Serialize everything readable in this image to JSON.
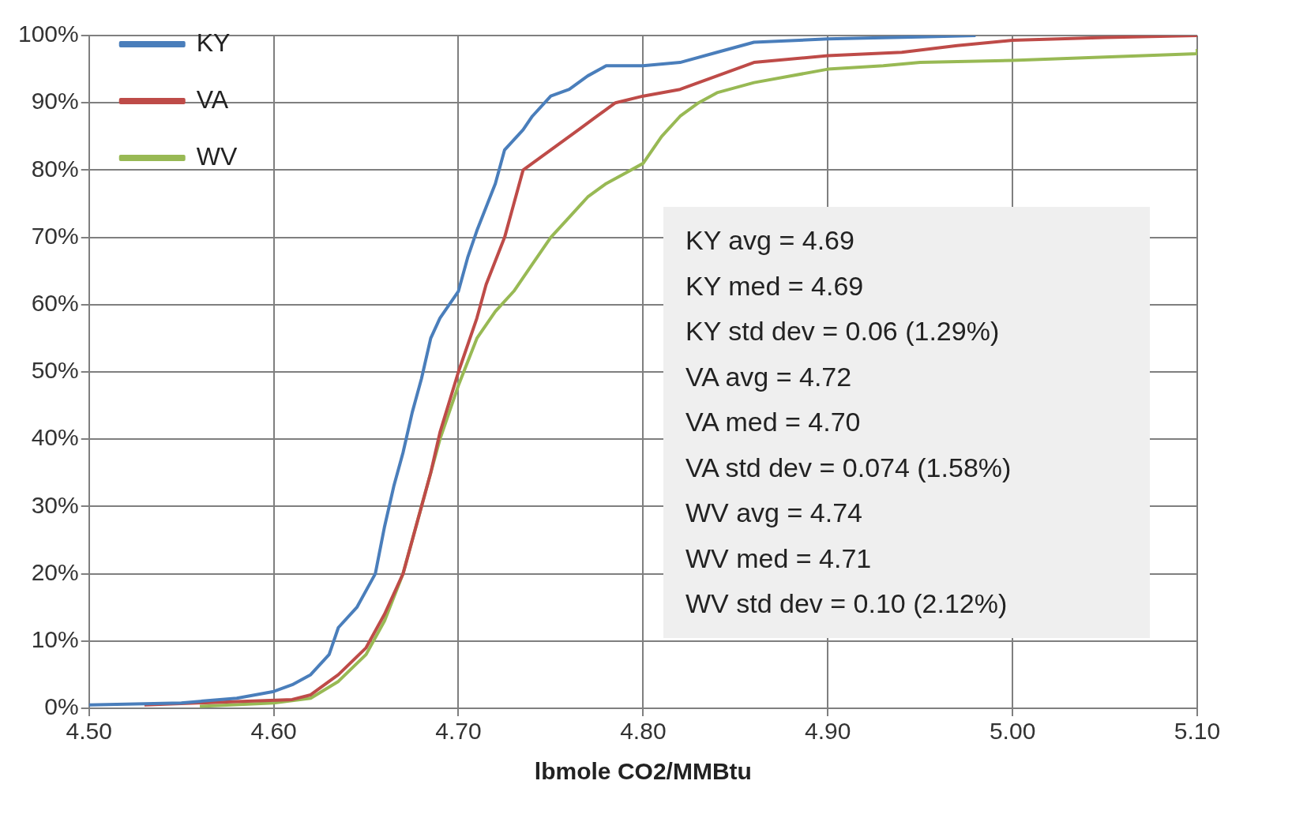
{
  "chart_data": {
    "type": "line",
    "xlabel": "lbmole CO2/MMBtu",
    "xlim": [
      4.5,
      5.1
    ],
    "xticks": [
      {
        "value": 4.5,
        "label": "4.50"
      },
      {
        "value": 4.6,
        "label": "4.60"
      },
      {
        "value": 4.7,
        "label": "4.70"
      },
      {
        "value": 4.8,
        "label": "4.80"
      },
      {
        "value": 4.9,
        "label": "4.90"
      },
      {
        "value": 5.0,
        "label": "5.00"
      },
      {
        "value": 5.1,
        "label": "5.10"
      }
    ],
    "ylim": [
      0,
      100
    ],
    "yticks": [
      {
        "value": 0,
        "label": "0%"
      },
      {
        "value": 10,
        "label": "10%"
      },
      {
        "value": 20,
        "label": "20%"
      },
      {
        "value": 30,
        "label": "30%"
      },
      {
        "value": 40,
        "label": "40%"
      },
      {
        "value": 50,
        "label": "50%"
      },
      {
        "value": 60,
        "label": "60%"
      },
      {
        "value": 70,
        "label": "70%"
      },
      {
        "value": 80,
        "label": "80%"
      },
      {
        "value": 90,
        "label": "90%"
      },
      {
        "value": 100,
        "label": "100%"
      }
    ],
    "grid": true,
    "legend": "top left",
    "marker": "none",
    "line_style": "solid",
    "series": [
      {
        "name": "KY",
        "color": "#4a7ebb",
        "x": [
          4.5,
          4.55,
          4.58,
          4.6,
          4.61,
          4.62,
          4.63,
          4.635,
          4.645,
          4.655,
          4.66,
          4.665,
          4.67,
          4.675,
          4.68,
          4.685,
          4.69,
          4.7,
          4.705,
          4.71,
          4.72,
          4.725,
          4.735,
          4.74,
          4.75,
          4.76,
          4.77,
          4.78,
          4.8,
          4.82,
          4.84,
          4.86,
          4.9,
          4.95,
          4.98
        ],
        "values": [
          0.5,
          0.8,
          1.5,
          2.5,
          3.5,
          5,
          8,
          12,
          15,
          20,
          27,
          33,
          38,
          44,
          49,
          55,
          58,
          62,
          67,
          71,
          78,
          83,
          86,
          88,
          91,
          92,
          94,
          95.5,
          95.5,
          96,
          97.5,
          99,
          99.5,
          99.8,
          100
        ]
      },
      {
        "name": "VA",
        "color": "#be4b48",
        "x": [
          4.53,
          4.58,
          4.61,
          4.62,
          4.635,
          4.65,
          4.66,
          4.67,
          4.68,
          4.685,
          4.69,
          4.7,
          4.71,
          4.715,
          4.725,
          4.73,
          4.735,
          4.745,
          4.755,
          4.765,
          4.775,
          4.785,
          4.8,
          4.82,
          4.84,
          4.86,
          4.9,
          4.94,
          4.97,
          5.0,
          5.05,
          5.1
        ],
        "values": [
          0.5,
          1,
          1.3,
          2,
          5,
          9,
          14,
          20,
          30,
          35,
          41,
          50,
          58,
          63,
          70,
          75,
          80,
          82,
          84,
          86,
          88,
          90,
          91,
          92,
          94,
          96,
          97,
          97.5,
          98.5,
          99.3,
          99.7,
          100
        ]
      },
      {
        "name": "WV",
        "color": "#98b954",
        "x": [
          4.56,
          4.6,
          4.62,
          4.635,
          4.65,
          4.66,
          4.67,
          4.68,
          4.69,
          4.7,
          4.71,
          4.72,
          4.73,
          4.74,
          4.75,
          4.76,
          4.77,
          4.78,
          4.79,
          4.8,
          4.81,
          4.82,
          4.83,
          4.84,
          4.86,
          4.9,
          4.93,
          4.95,
          5.0,
          5.05,
          5.1,
          5.1
        ],
        "values": [
          0.3,
          0.8,
          1.5,
          4,
          8,
          13,
          20,
          30,
          40,
          48,
          55,
          59,
          62,
          66,
          70,
          73,
          76,
          78,
          79.5,
          81,
          85,
          88,
          90,
          91.5,
          93,
          95,
          95.5,
          96,
          96.3,
          96.8,
          97.3,
          98
        ]
      }
    ],
    "annotations": [
      "KY avg = 4.69",
      "KY med = 4.69",
      "KY std dev = 0.06 (1.29%)",
      "VA avg = 4.72",
      "VA med = 4.70",
      "VA std dev = 0.074 (1.58%)",
      "WV avg = 4.74",
      "WV med = 4.71",
      "WV std dev = 0.10 (2.12%)"
    ]
  }
}
